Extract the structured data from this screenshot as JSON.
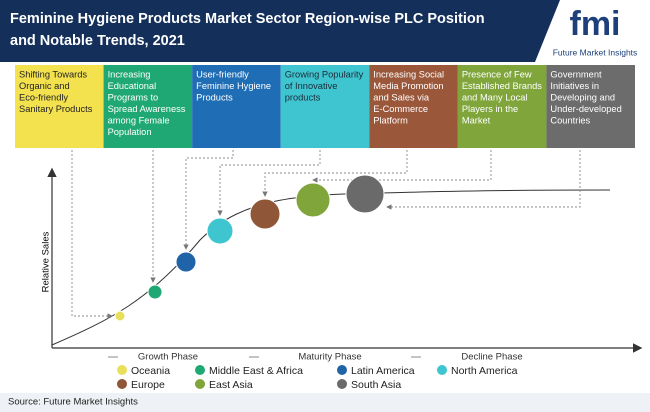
{
  "header": {
    "title_lines": [
      "Feminine Hygiene Products Market Sector Region-wise PLC Position",
      "and Notable Trends, 2021"
    ],
    "logo": {
      "mark": "fmi",
      "name": "Future Market Insights"
    }
  },
  "trends": [
    {
      "lines": [
        "Shifting Towards",
        "Organic and",
        "Eco-friendly",
        "Sanitary Products"
      ],
      "color": "#f3e24e",
      "text_color": "#222222"
    },
    {
      "lines": [
        "Increasing",
        "Educational",
        "Programs to",
        "Spread Awareness",
        "among Female",
        "Population"
      ],
      "color": "#1fa873",
      "text_color": "#ffffff"
    },
    {
      "lines": [
        "User-friendly",
        "Feminine Hygiene",
        "Products"
      ],
      "color": "#1f6db4",
      "text_color": "#ffffff"
    },
    {
      "lines": [
        "Growing Popularity",
        "of Innovative",
        "products"
      ],
      "color": "#3ec5cf",
      "text_color": "#1c2b3a"
    },
    {
      "lines": [
        "Increasing Social",
        "Media Promotion",
        "and Sales via",
        "E-Commerce",
        "Platform"
      ],
      "color": "#9b573a",
      "text_color": "#ffffff"
    },
    {
      "lines": [
        "Presence of Few",
        "Established Brands",
        "and Many Local",
        "Players in the",
        "Market"
      ],
      "color": "#7fa53b",
      "text_color": "#ffffff"
    },
    {
      "lines": [
        "Government",
        "Initiatives in",
        "Developing and",
        "Under-developed",
        "Countries"
      ],
      "color": "#6c6c6c",
      "text_color": "#ffffff"
    }
  ],
  "regions": [
    {
      "name": "Oceania",
      "color": "#eadf5a"
    },
    {
      "name": "Middle East & Africa",
      "color": "#1fa873"
    },
    {
      "name": "Latin America",
      "color": "#1f63a8"
    },
    {
      "name": "North America",
      "color": "#3ec5cf"
    },
    {
      "name": "Europe",
      "color": "#8f5638"
    },
    {
      "name": "East Asia",
      "color": "#7fa53b"
    },
    {
      "name": "South Asia",
      "color": "#6a6a6a"
    }
  ],
  "axis": {
    "y_label": "Relative Sales",
    "phases": [
      "Growth Phase",
      "Maturity Phase",
      "Decline Phase"
    ]
  },
  "source": "Source: Future Market Insights"
}
